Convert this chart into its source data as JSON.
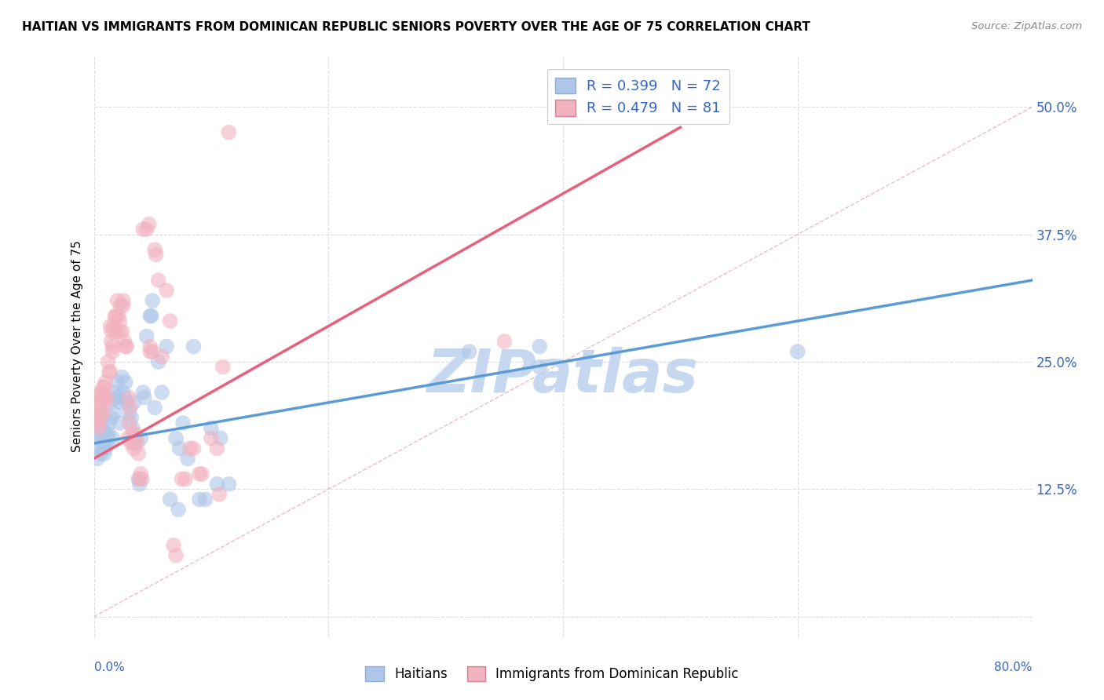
{
  "title": "HAITIAN VS IMMIGRANTS FROM DOMINICAN REPUBLIC SENIORS POVERTY OVER THE AGE OF 75 CORRELATION CHART",
  "source": "Source: ZipAtlas.com",
  "ylabel": "Seniors Poverty Over the Age of 75",
  "yticks": [
    0.0,
    0.125,
    0.25,
    0.375,
    0.5
  ],
  "ytick_labels": [
    "",
    "12.5%",
    "25.0%",
    "37.5%",
    "50.0%"
  ],
  "xlim": [
    0.0,
    0.8
  ],
  "ylim": [
    -0.02,
    0.55
  ],
  "xlim_ticks": [
    0.0,
    0.2,
    0.4,
    0.6,
    0.8
  ],
  "blue_color": "#5b9bd5",
  "pink_color": "#e8607a",
  "blue_fill": "#aec6e8",
  "pink_fill": "#f2b3c0",
  "watermark": "ZIPatlas",
  "watermark_color": "#c5d8ef",
  "blue_scatter": [
    [
      0.002,
      0.195
    ],
    [
      0.003,
      0.185
    ],
    [
      0.003,
      0.155
    ],
    [
      0.004,
      0.175
    ],
    [
      0.005,
      0.195
    ],
    [
      0.005,
      0.165
    ],
    [
      0.005,
      0.18
    ],
    [
      0.006,
      0.2
    ],
    [
      0.006,
      0.16
    ],
    [
      0.007,
      0.19
    ],
    [
      0.007,
      0.175
    ],
    [
      0.008,
      0.18
    ],
    [
      0.008,
      0.165
    ],
    [
      0.009,
      0.17
    ],
    [
      0.009,
      0.16
    ],
    [
      0.01,
      0.18
    ],
    [
      0.01,
      0.165
    ],
    [
      0.011,
      0.17
    ],
    [
      0.012,
      0.175
    ],
    [
      0.012,
      0.18
    ],
    [
      0.013,
      0.19
    ],
    [
      0.014,
      0.21
    ],
    [
      0.015,
      0.195
    ],
    [
      0.016,
      0.175
    ],
    [
      0.017,
      0.2
    ],
    [
      0.018,
      0.215
    ],
    [
      0.019,
      0.22
    ],
    [
      0.02,
      0.23
    ],
    [
      0.021,
      0.215
    ],
    [
      0.022,
      0.19
    ],
    [
      0.023,
      0.21
    ],
    [
      0.024,
      0.235
    ],
    [
      0.025,
      0.22
    ],
    [
      0.026,
      0.215
    ],
    [
      0.027,
      0.23
    ],
    [
      0.028,
      0.21
    ],
    [
      0.03,
      0.2
    ],
    [
      0.032,
      0.195
    ],
    [
      0.033,
      0.185
    ],
    [
      0.034,
      0.21
    ],
    [
      0.035,
      0.17
    ],
    [
      0.036,
      0.175
    ],
    [
      0.038,
      0.135
    ],
    [
      0.039,
      0.13
    ],
    [
      0.04,
      0.175
    ],
    [
      0.042,
      0.22
    ],
    [
      0.043,
      0.215
    ],
    [
      0.045,
      0.275
    ],
    [
      0.048,
      0.295
    ],
    [
      0.049,
      0.295
    ],
    [
      0.05,
      0.31
    ],
    [
      0.052,
      0.205
    ],
    [
      0.055,
      0.25
    ],
    [
      0.058,
      0.22
    ],
    [
      0.062,
      0.265
    ],
    [
      0.065,
      0.115
    ],
    [
      0.07,
      0.175
    ],
    [
      0.072,
      0.105
    ],
    [
      0.073,
      0.165
    ],
    [
      0.076,
      0.19
    ],
    [
      0.08,
      0.155
    ],
    [
      0.085,
      0.265
    ],
    [
      0.09,
      0.115
    ],
    [
      0.095,
      0.115
    ],
    [
      0.1,
      0.185
    ],
    [
      0.105,
      0.13
    ],
    [
      0.108,
      0.175
    ],
    [
      0.115,
      0.13
    ],
    [
      0.32,
      0.26
    ],
    [
      0.38,
      0.265
    ],
    [
      0.38,
      0.245
    ],
    [
      0.6,
      0.26
    ]
  ],
  "pink_scatter": [
    [
      0.002,
      0.195
    ],
    [
      0.003,
      0.21
    ],
    [
      0.004,
      0.19
    ],
    [
      0.004,
      0.185
    ],
    [
      0.005,
      0.21
    ],
    [
      0.005,
      0.2
    ],
    [
      0.005,
      0.195
    ],
    [
      0.006,
      0.22
    ],
    [
      0.006,
      0.21
    ],
    [
      0.007,
      0.22
    ],
    [
      0.007,
      0.215
    ],
    [
      0.008,
      0.225
    ],
    [
      0.008,
      0.2
    ],
    [
      0.009,
      0.215
    ],
    [
      0.009,
      0.225
    ],
    [
      0.01,
      0.23
    ],
    [
      0.01,
      0.21
    ],
    [
      0.011,
      0.215
    ],
    [
      0.012,
      0.25
    ],
    [
      0.013,
      0.24
    ],
    [
      0.014,
      0.24
    ],
    [
      0.014,
      0.285
    ],
    [
      0.015,
      0.27
    ],
    [
      0.015,
      0.28
    ],
    [
      0.016,
      0.265
    ],
    [
      0.016,
      0.26
    ],
    [
      0.017,
      0.285
    ],
    [
      0.018,
      0.28
    ],
    [
      0.018,
      0.295
    ],
    [
      0.019,
      0.295
    ],
    [
      0.02,
      0.31
    ],
    [
      0.021,
      0.295
    ],
    [
      0.022,
      0.29
    ],
    [
      0.022,
      0.28
    ],
    [
      0.023,
      0.305
    ],
    [
      0.024,
      0.28
    ],
    [
      0.025,
      0.31
    ],
    [
      0.025,
      0.305
    ],
    [
      0.026,
      0.27
    ],
    [
      0.027,
      0.265
    ],
    [
      0.028,
      0.265
    ],
    [
      0.029,
      0.175
    ],
    [
      0.03,
      0.19
    ],
    [
      0.03,
      0.215
    ],
    [
      0.031,
      0.205
    ],
    [
      0.032,
      0.17
    ],
    [
      0.033,
      0.18
    ],
    [
      0.034,
      0.165
    ],
    [
      0.035,
      0.18
    ],
    [
      0.036,
      0.175
    ],
    [
      0.037,
      0.17
    ],
    [
      0.038,
      0.16
    ],
    [
      0.039,
      0.135
    ],
    [
      0.04,
      0.14
    ],
    [
      0.041,
      0.135
    ],
    [
      0.042,
      0.38
    ],
    [
      0.045,
      0.38
    ],
    [
      0.047,
      0.385
    ],
    [
      0.048,
      0.265
    ],
    [
      0.048,
      0.26
    ],
    [
      0.05,
      0.26
    ],
    [
      0.052,
      0.36
    ],
    [
      0.053,
      0.355
    ],
    [
      0.055,
      0.33
    ],
    [
      0.058,
      0.255
    ],
    [
      0.062,
      0.32
    ],
    [
      0.065,
      0.29
    ],
    [
      0.068,
      0.07
    ],
    [
      0.07,
      0.06
    ],
    [
      0.075,
      0.135
    ],
    [
      0.078,
      0.135
    ],
    [
      0.082,
      0.165
    ],
    [
      0.085,
      0.165
    ],
    [
      0.09,
      0.14
    ],
    [
      0.092,
      0.14
    ],
    [
      0.1,
      0.175
    ],
    [
      0.105,
      0.165
    ],
    [
      0.107,
      0.12
    ],
    [
      0.11,
      0.245
    ],
    [
      0.115,
      0.475
    ],
    [
      0.35,
      0.27
    ]
  ],
  "blue_line": [
    [
      0.0,
      0.17
    ],
    [
      0.8,
      0.33
    ]
  ],
  "pink_line": [
    [
      0.0,
      0.155
    ],
    [
      0.5,
      0.48
    ]
  ],
  "dashed_line_x": [
    0.0,
    0.8
  ],
  "dashed_line_y": [
    0.0,
    0.5
  ],
  "title_fontsize": 11,
  "axis_label_color": "#3366cc",
  "grid_color": "#dddddd",
  "axis_color": "#3366cc"
}
